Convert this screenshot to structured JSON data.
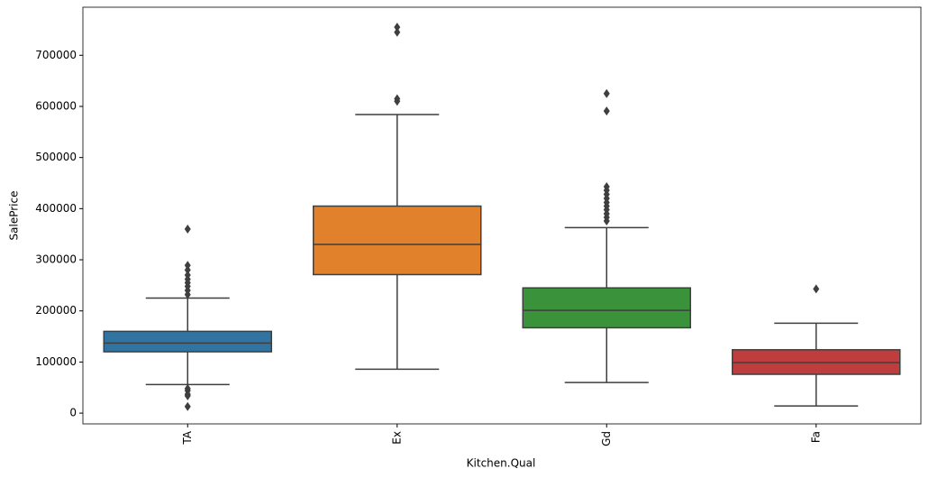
{
  "chart_data": {
    "type": "box",
    "x_label": "Kitchen.Qual",
    "y_label": "SalePrice",
    "categories": [
      "TA",
      "Ex",
      "Gd",
      "Fa"
    ],
    "colors": [
      "#3274a1",
      "#e1812c",
      "#3a923a",
      "#c03d3e"
    ],
    "whislo": [
      56000,
      86000,
      60000,
      14000
    ],
    "q1": [
      120000,
      271000,
      167000,
      76000
    ],
    "median": [
      137000,
      330000,
      201000,
      99000
    ],
    "q3": [
      160000,
      405000,
      245000,
      124000
    ],
    "whishi": [
      225000,
      584000,
      363000,
      176000
    ],
    "fliers": [
      [
        360000,
        289000,
        280000,
        270000,
        262000,
        255000,
        248000,
        240000,
        232000,
        48000,
        44000,
        37000,
        34000,
        13000
      ],
      [
        755000,
        745000,
        615000,
        610000
      ],
      [
        625000,
        591000,
        443000,
        436000,
        428000,
        420000,
        412000,
        405000,
        398000,
        390000,
        383000,
        376000
      ],
      [
        243000
      ]
    ],
    "ylim": [
      -21000,
      794000
    ],
    "yticks": [
      0,
      100000,
      200000,
      300000,
      400000,
      500000,
      600000,
      700000
    ]
  }
}
